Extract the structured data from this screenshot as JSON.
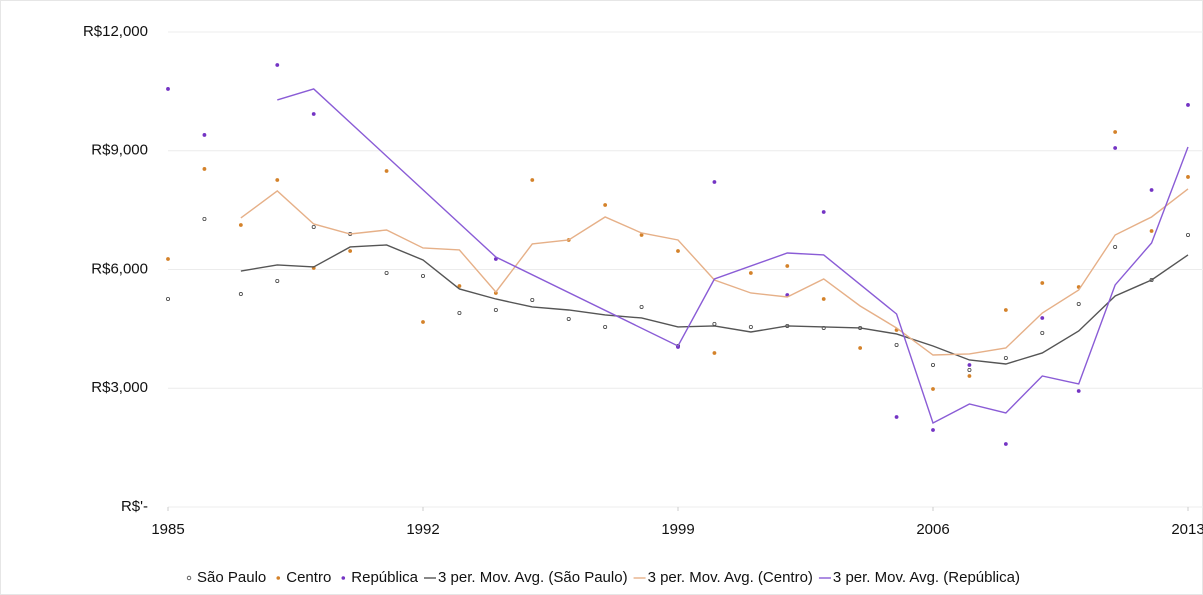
{
  "chart_data": {
    "type": "line",
    "x": [
      1985,
      1986,
      1987,
      1988,
      1989,
      1990,
      1991,
      1992,
      1993,
      1994,
      1995,
      1996,
      1997,
      1998,
      1999,
      2000,
      2001,
      2002,
      2003,
      2004,
      2005,
      2006,
      2007,
      2008,
      2009,
      2010,
      2011,
      2012,
      2013
    ],
    "xlim": [
      1985,
      2013
    ],
    "xticks": [
      1985,
      1992,
      1999,
      2006,
      2013
    ],
    "ylim": [
      0,
      12000
    ],
    "yticks": [
      {
        "value": 0,
        "label": "R$'-"
      },
      {
        "value": 3000,
        "label": "R$3,000"
      },
      {
        "value": 6000,
        "label": "R$6,000"
      },
      {
        "value": 9000,
        "label": "R$9,000"
      },
      {
        "value": 12000,
        "label": "R$12,000"
      }
    ],
    "grid": true,
    "legend": "bottom",
    "series": [
      {
        "name": "São Paulo",
        "color": "#444444",
        "mode": "open-markers",
        "values": [
          5255,
          7276,
          5380,
          5710,
          7074,
          6897,
          5912,
          5836,
          4901,
          4977,
          5230,
          4750,
          4548,
          5053,
          4068,
          4624,
          4548,
          4573,
          4523,
          4523,
          4093,
          3588,
          3461,
          3765,
          4396,
          5129,
          6569,
          5735,
          6872
        ]
      },
      {
        "name": "Centro",
        "color": "#d4822a",
        "mode": "markers",
        "values": [
          6266,
          8540,
          7125,
          8262,
          6039,
          6468,
          8489,
          4674,
          5584,
          5407,
          8262,
          6746,
          7630,
          6872,
          6468,
          3891,
          5912,
          6089,
          5255,
          4017,
          4472,
          2981,
          3310,
          4977,
          5659,
          5558,
          9474,
          6973,
          8338
        ]
      },
      {
        "name": "República",
        "color": "#7434c4",
        "mode": "markers",
        "values": [
          10561,
          9399,
          null,
          11167,
          9929,
          null,
          null,
          null,
          null,
          6266,
          null,
          null,
          null,
          null,
          4042,
          8211,
          null,
          5356,
          7453,
          null,
          2274,
          1945,
          3588,
          1592,
          4775,
          2931,
          9070,
          8009,
          10157
        ]
      },
      {
        "name": "3 per. Mov. Avg. (São Paulo)",
        "color": "#555555",
        "mode": "line",
        "values": [
          null,
          null,
          5962,
          6114,
          6064,
          6569,
          6620,
          6241,
          5508,
          5255,
          5053,
          4977,
          4851,
          4775,
          4548,
          4573,
          4421,
          4573,
          4548,
          4523,
          4371,
          4068,
          3714,
          3613,
          3891,
          4447,
          5331,
          5735,
          6367
        ]
      },
      {
        "name": "3 per. Mov. Avg. (Centro)",
        "color": "#e6b088",
        "mode": "line",
        "values": [
          null,
          null,
          7302,
          7984,
          7150,
          6897,
          6998,
          6544,
          6493,
          5432,
          6645,
          6746,
          7327,
          6923,
          6746,
          5735,
          5407,
          5306,
          5760,
          5078,
          4523,
          3840,
          3866,
          4017,
          4901,
          5482,
          6872,
          7327,
          8034
        ]
      },
      {
        "name": "3 per. Mov. Avg. (República)",
        "color": "#8a5cd6",
        "mode": "line",
        "x": [
          1988,
          1989,
          1994,
          1999,
          2000,
          2002,
          2003,
          2005,
          2006,
          2007,
          2008,
          2009,
          2010,
          2011,
          2012,
          2013
        ],
        "values": [
          10283,
          10561,
          6316,
          4068,
          5760,
          6417,
          6367,
          4876,
          2122,
          2602,
          2375,
          3310,
          3108,
          5609,
          6670,
          9095
        ]
      }
    ]
  }
}
